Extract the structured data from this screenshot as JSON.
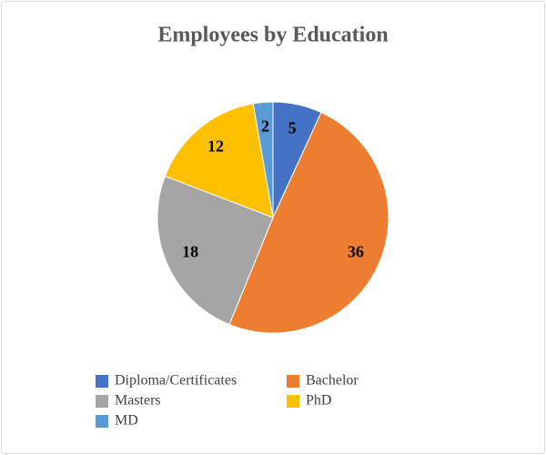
{
  "chart_data": {
    "type": "pie",
    "title": "Employees by Education",
    "categories": [
      "Diploma/Certificates",
      "Bachelor",
      "Masters",
      "PhD",
      "MD"
    ],
    "values": [
      5,
      36,
      18,
      12,
      2
    ],
    "colors": [
      "#4472c4",
      "#ed7d31",
      "#a5a5a5",
      "#ffc000",
      "#5b9bd5"
    ],
    "legend": "bottom"
  }
}
